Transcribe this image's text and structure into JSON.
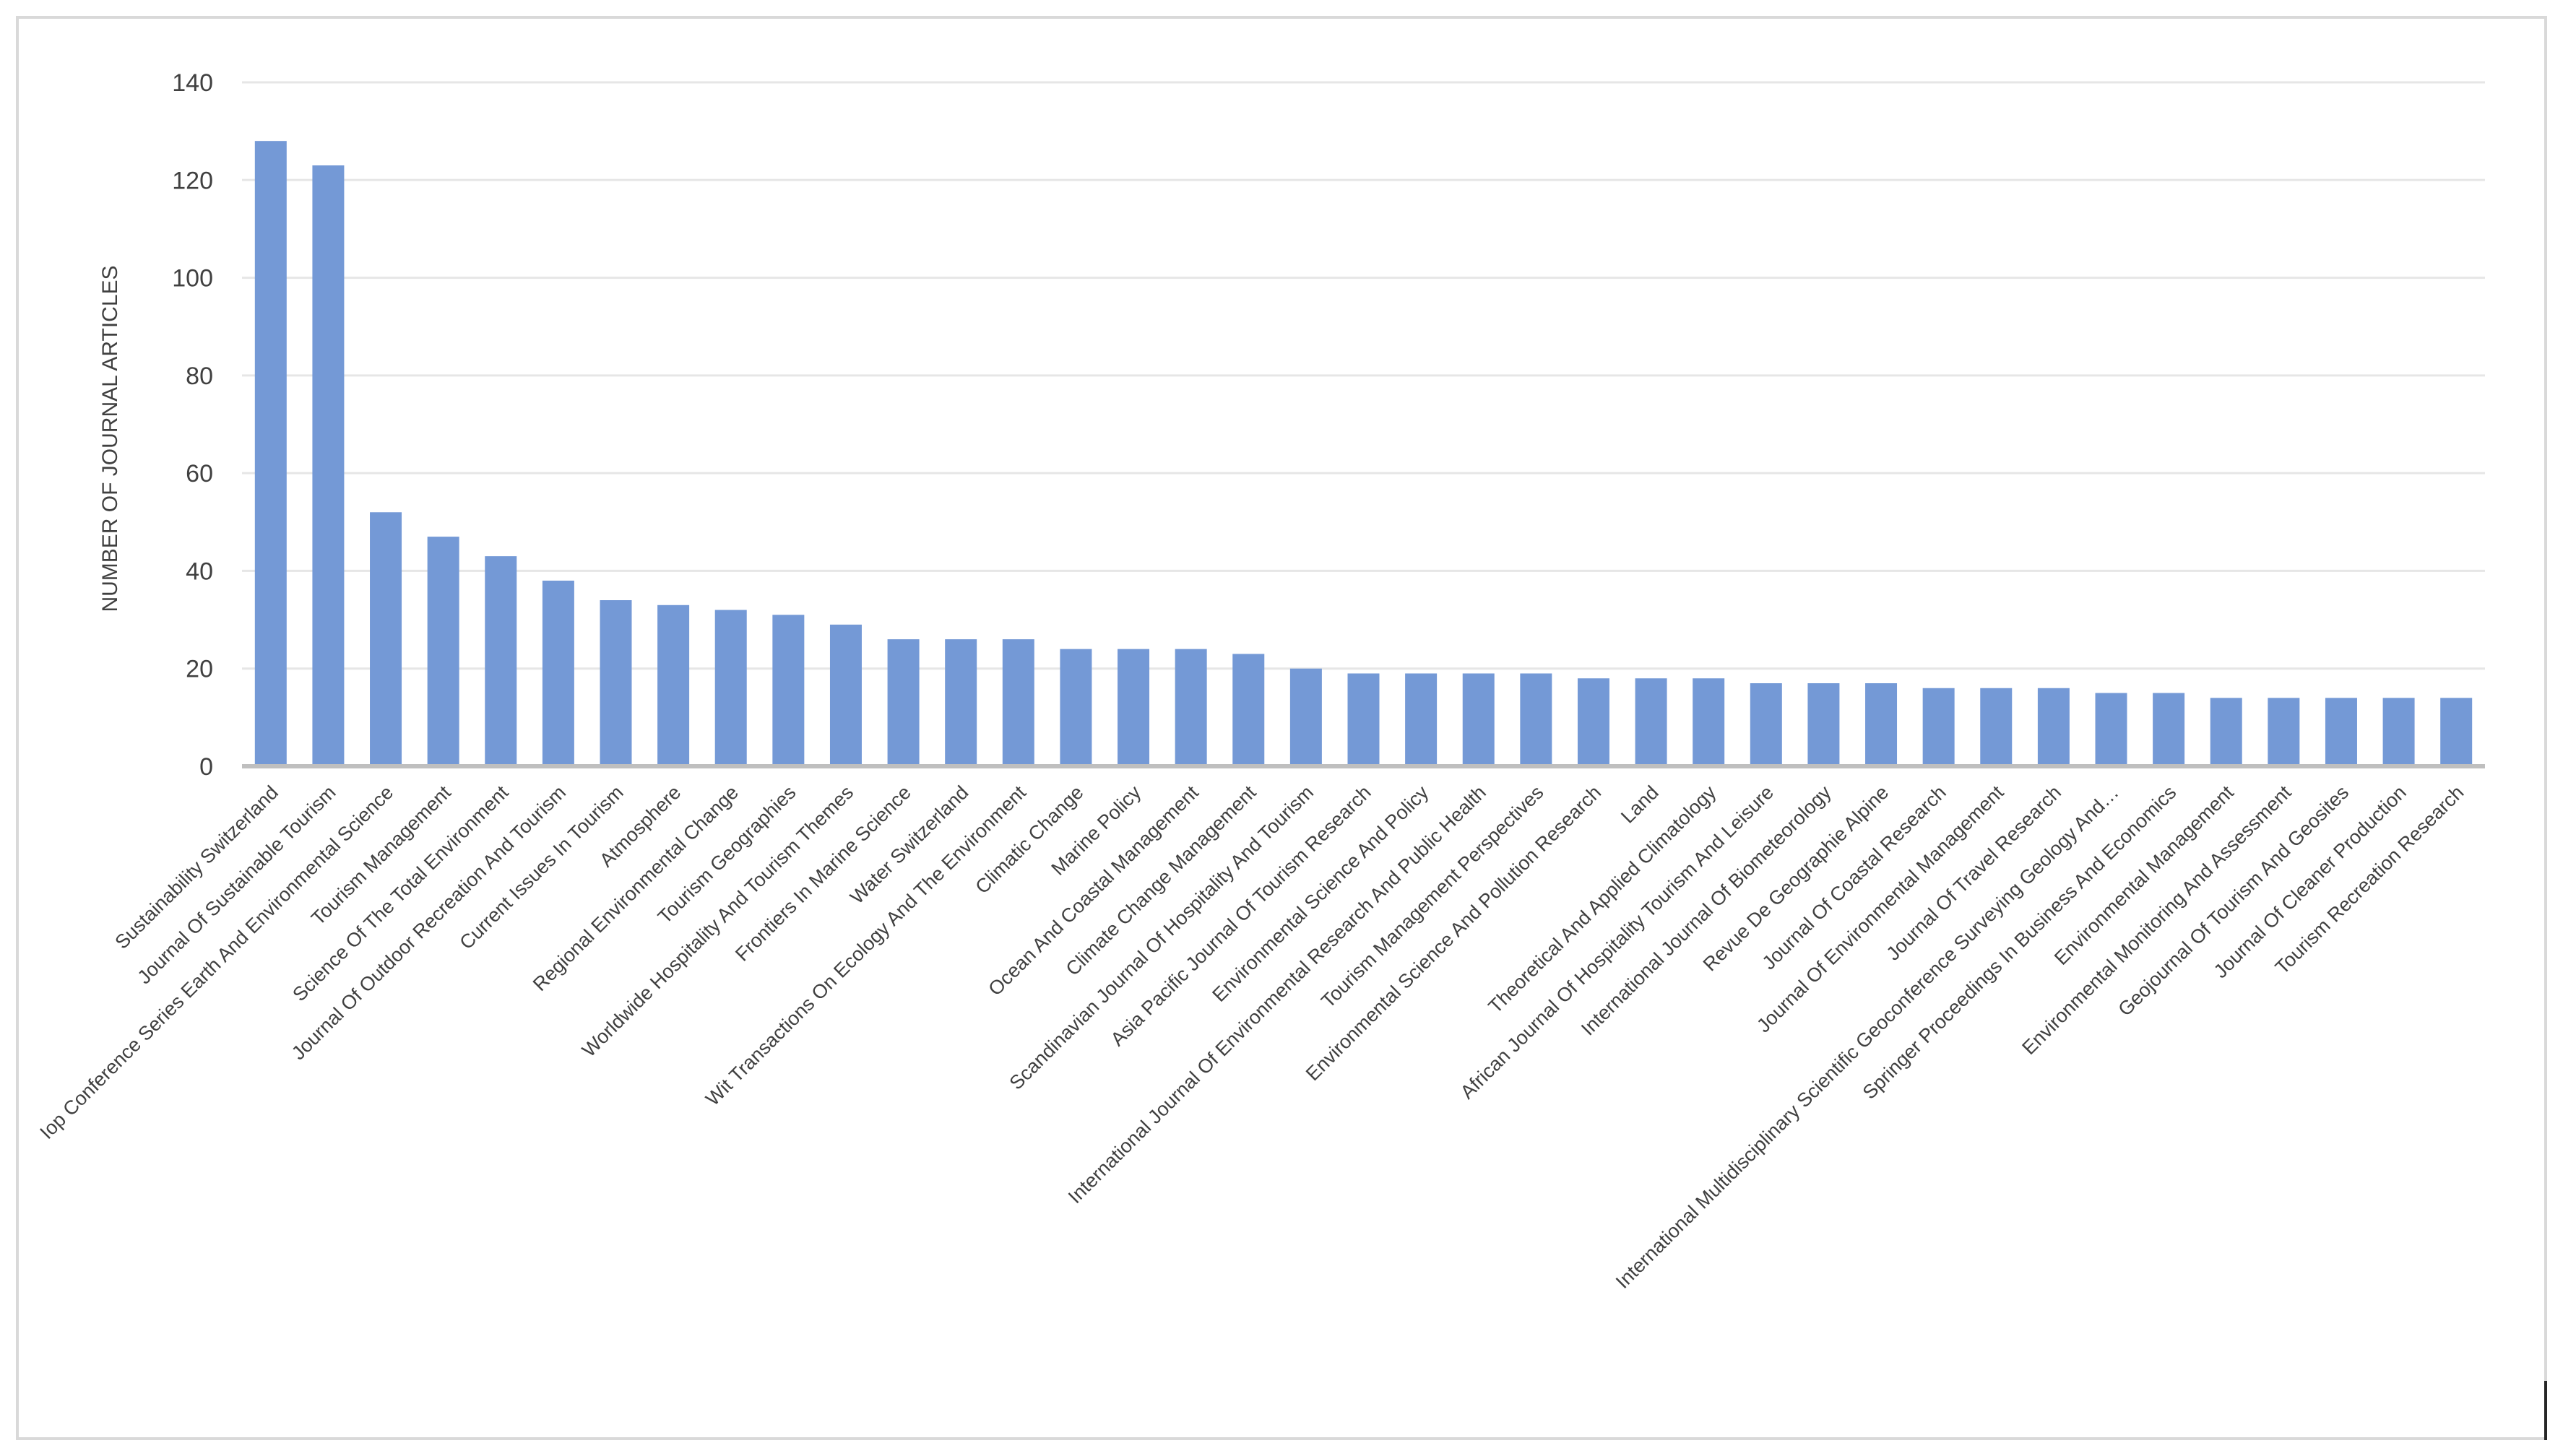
{
  "chart_data": {
    "type": "bar",
    "title": "",
    "xlabel": "",
    "ylabel": "NUMBER OF JOURNAL ARTICLES",
    "ylim": [
      0,
      140
    ],
    "yticks": [
      0,
      20,
      40,
      60,
      80,
      100,
      120,
      140
    ],
    "grid": true,
    "bar_color": "#7499d6",
    "categories": [
      "Sustainability Switzerland",
      "Journal Of Sustainable Tourism",
      "Iop Conference Series Earth And Environmental Science",
      "Tourism Management",
      "Science Of The Total Environment",
      "Journal Of Outdoor Recreation And Tourism",
      "Current Issues In Tourism",
      "Atmosphere",
      "Regional Environmental Change",
      "Tourism Geographies",
      "Worldwide Hospitality And Tourism Themes",
      "Frontiers In Marine Science",
      "Water Switzerland",
      "Wit Transactions On Ecology And The Environment",
      "Climatic Change",
      "Marine Policy",
      "Ocean And Coastal Management",
      "Climate Change Management",
      "Scandinavian Journal Of Hospitality And Tourism",
      "Asia Pacific Journal Of Tourism Research",
      "Environmental Science And Policy",
      "International Journal Of Environmental Research And Public Health",
      "Tourism Management Perspectives",
      "Environmental Science And Pollution Research",
      "Land",
      "Theoretical And Applied Climatology",
      "African Journal Of Hospitality Tourism And Leisure",
      "International Journal Of Biometeorology",
      "Revue De Geographie Alpine",
      "Journal Of Coastal Research",
      "Journal Of Environmental Management",
      "Journal Of Travel Research",
      "International Multidisciplinary Scientific Geoconference Surveying Geology And…",
      "Springer Proceedings In Business And Economics",
      "Environmental Management",
      "Environmental Monitoring And Assessment",
      "Geojournal Of Tourism And Geosites",
      "Journal Of Cleaner Production",
      "Tourism Recreation Research"
    ],
    "values": [
      128,
      123,
      52,
      47,
      43,
      38,
      34,
      33,
      32,
      31,
      29,
      26,
      26,
      26,
      24,
      24,
      24,
      23,
      20,
      19,
      19,
      19,
      19,
      18,
      18,
      18,
      17,
      17,
      17,
      16,
      16,
      16,
      15,
      15,
      14,
      14,
      14,
      14,
      14
    ]
  }
}
